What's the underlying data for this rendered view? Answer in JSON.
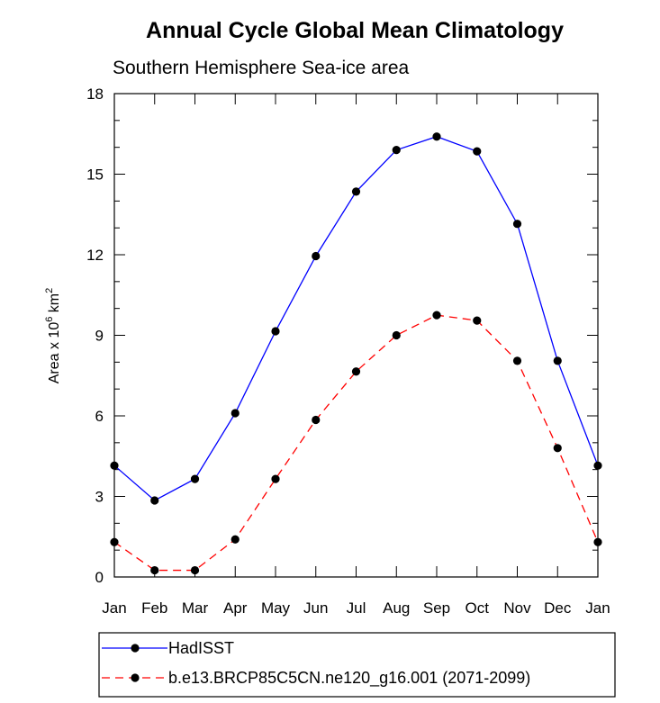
{
  "chart_data": {
    "type": "line",
    "title": "Annual Cycle Global Mean Climatology",
    "subtitle": "Southern Hemisphere Sea-ice area",
    "ylabel": {
      "prefix": "Area x 10",
      "exp1": "6",
      "mid": " km",
      "exp2": "2"
    },
    "xlabel": "",
    "categories": [
      "Jan",
      "Feb",
      "Mar",
      "Apr",
      "May",
      "Jun",
      "Jul",
      "Aug",
      "Sep",
      "Oct",
      "Nov",
      "Dec",
      "Jan"
    ],
    "ylim": [
      0,
      18
    ],
    "yticks": [
      0,
      3,
      6,
      9,
      12,
      15,
      18
    ],
    "series": [
      {
        "name": "HadISST",
        "color": "#0000ff",
        "dash": "solid",
        "values": [
          4.15,
          2.85,
          3.65,
          6.1,
          9.15,
          11.95,
          14.35,
          15.9,
          16.4,
          15.85,
          13.15,
          8.05,
          4.15
        ]
      },
      {
        "name": "b.e13.BRCP85C5CN.ne120_g16.001 (2071-2099)",
        "color": "#ff0000",
        "dash": "dashed",
        "values": [
          1.3,
          0.25,
          0.25,
          1.4,
          3.65,
          5.85,
          7.65,
          9.0,
          9.75,
          9.55,
          8.05,
          4.8,
          1.3
        ]
      }
    ],
    "legend": "bottom",
    "grid": false
  }
}
